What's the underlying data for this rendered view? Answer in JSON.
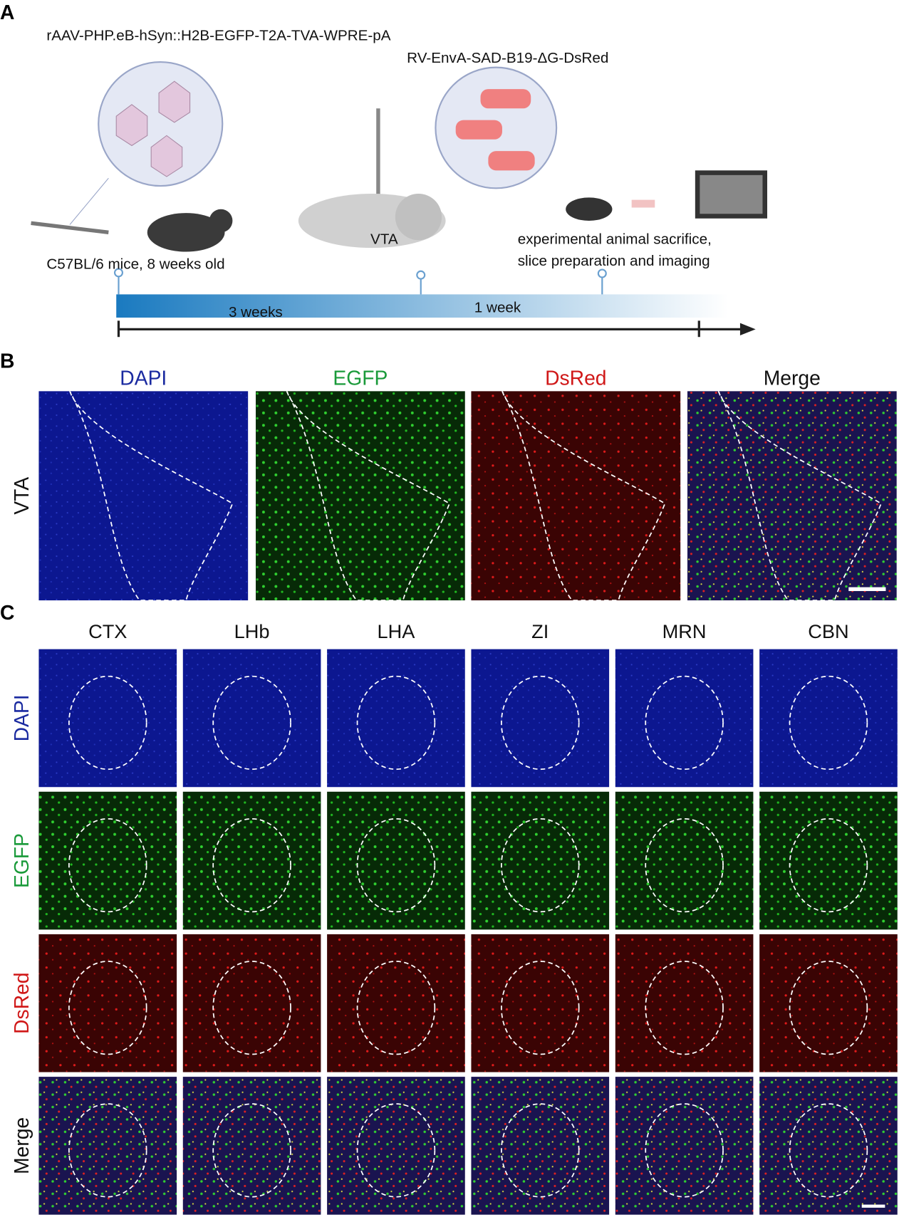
{
  "panel_a": {
    "label": "A",
    "aav": "rAAV-PHP.eB-hSyn::H2B-EGFP-T2A-TVA-WPRE-pA",
    "rv": "RV-EnvA-SAD-B19-ΔG-DsRed",
    "vta": "VTA",
    "mice": "C57BL/6 mice, 8 weeks old",
    "sacrifice_1": "experimental animal sacrifice,",
    "sacrifice_2": "slice preparation and imaging",
    "period_1": "3 weeks",
    "period_2": "1 week"
  },
  "panel_b": {
    "label": "B",
    "columns": [
      "DAPI",
      "EGFP",
      "DsRed",
      "Merge"
    ],
    "row": "VTA"
  },
  "panel_c": {
    "label": "C",
    "columns": [
      "CTX",
      "LHb",
      "LHA",
      "ZI",
      "MRN",
      "CBN"
    ],
    "rows": [
      "DAPI",
      "EGFP",
      "DsRed",
      "Merge"
    ]
  }
}
